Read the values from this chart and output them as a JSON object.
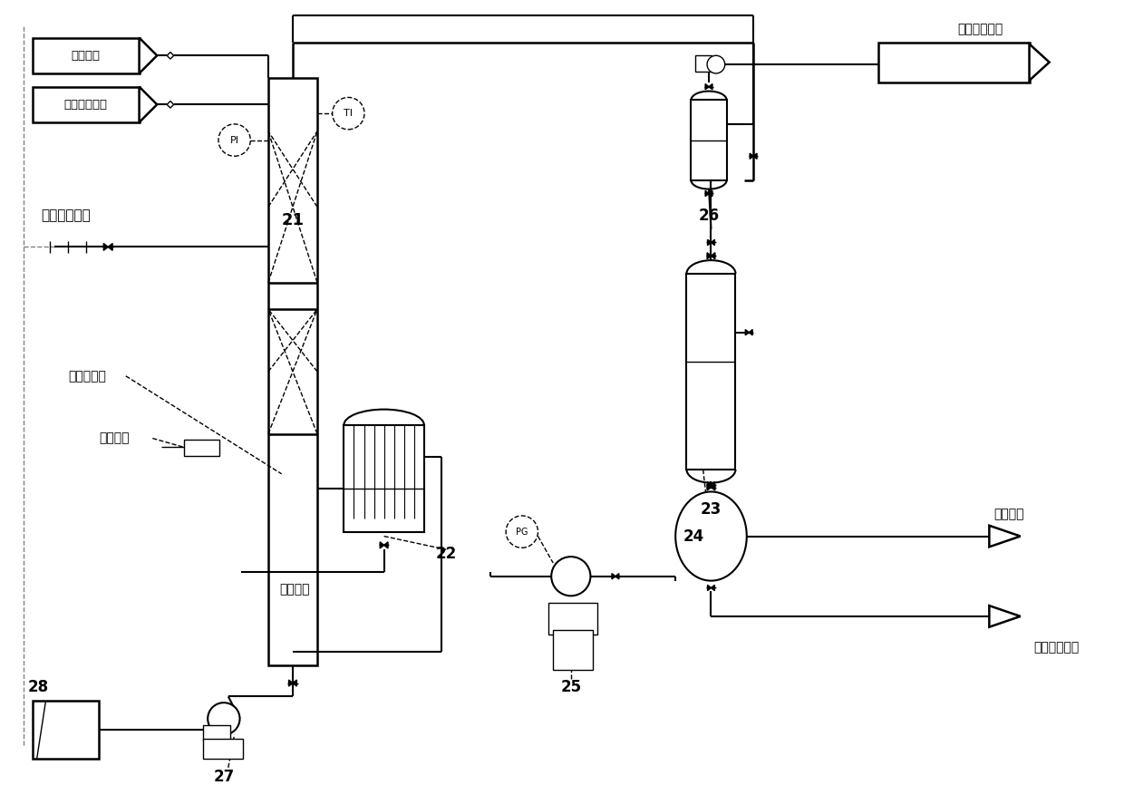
{
  "bg_color": "#ffffff",
  "line_color": "#000000",
  "labels": {
    "ammonia": "氨水原料",
    "gas_formaldehyde": "气相甲醛原料",
    "recycle": "循环饱和母液",
    "gas_distributor": "气体分布器",
    "steam_trace": "蒸汽伴热",
    "mother_liquor": "母液采出",
    "tail_gas": "尾气处理装置",
    "wastewater": "废水采出",
    "product": "乌洛托品采出",
    "num21": "21",
    "num22": "22",
    "num23": "23",
    "num24": "24",
    "num25": "25",
    "num26": "26",
    "num27": "27",
    "num28": "28",
    "pi": "PI",
    "ti": "TI",
    "pg": "PG"
  },
  "figsize": [
    12.4,
    8.66
  ],
  "dpi": 100
}
